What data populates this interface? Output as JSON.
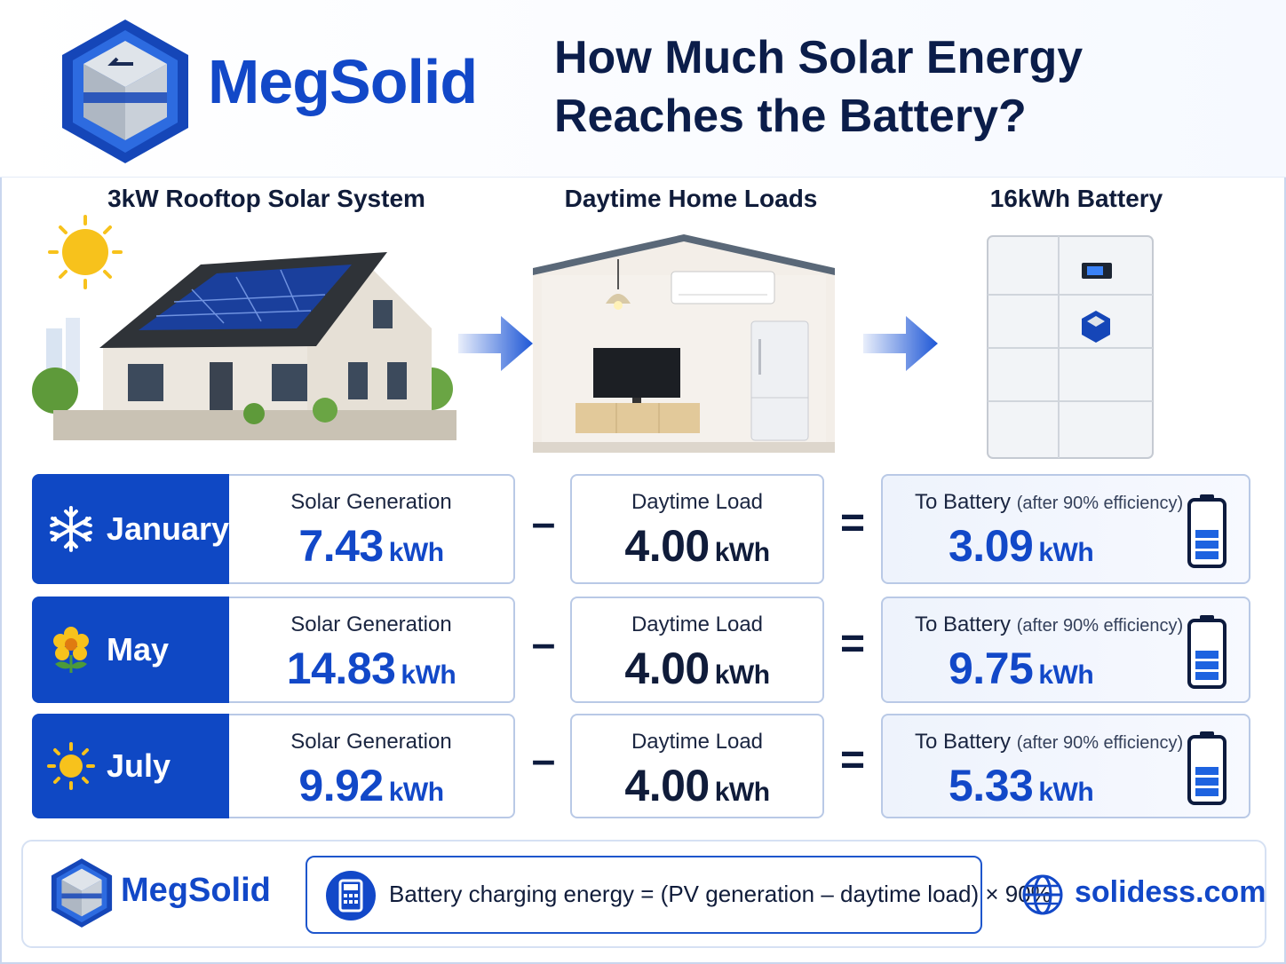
{
  "brand": "MegSolid",
  "headline": "How Much Solar Energy Reaches the Battery?",
  "sections": {
    "solar": "3kW Rooftop Solar System",
    "loads": "Daytime Home Loads",
    "battery": "16kWh Battery"
  },
  "labels": {
    "generation": "Solar Generation",
    "load": "Daytime Load",
    "to_battery": "To Battery",
    "efficiency_note": "(after 90% efficiency)",
    "unit": "kWh",
    "minus": "–",
    "equals": "="
  },
  "rows": [
    {
      "month": "January",
      "icon": "snowflake-icon",
      "generation": "7.43",
      "load": "4.00",
      "battery": "3.09"
    },
    {
      "month": "May",
      "icon": "flower-icon",
      "generation": "14.83",
      "load": "4.00",
      "battery": "9.75"
    },
    {
      "month": "July",
      "icon": "sun-icon",
      "generation": "9.92",
      "load": "4.00",
      "battery": "5.33"
    }
  ],
  "footer": {
    "brand": "MegSolid",
    "formula": "Battery charging energy = (PV generation – daytime load) × 90%",
    "website": "solidess.com"
  },
  "colors": {
    "brand_blue": "#1248c8",
    "navy": "#0b1d4a",
    "month_bg": "#0f48c4",
    "card_border": "#b9c9e6"
  }
}
